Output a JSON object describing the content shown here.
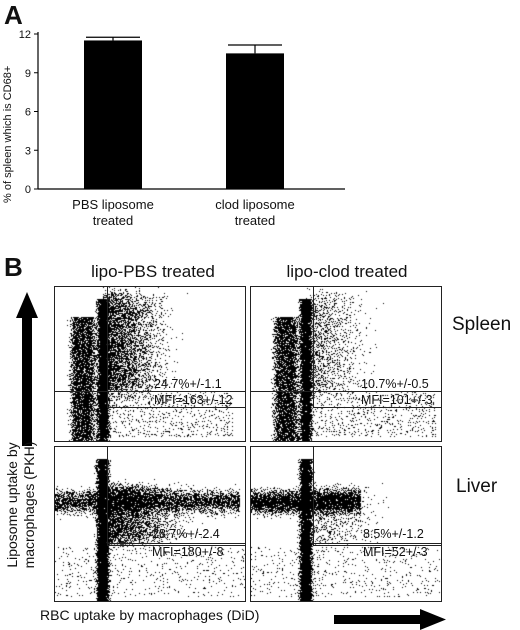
{
  "figure": {
    "panel_a_label": "A",
    "panel_b_label": "B"
  },
  "chart_data": [
    {
      "type": "bar",
      "panel": "A",
      "categories": [
        "PBS liposome\ntreated",
        "clod liposome\ntreated"
      ],
      "values": [
        11.5,
        10.5
      ],
      "errors": [
        0.25,
        0.65
      ],
      "ylabel": "% of spleen which is CD68+",
      "xlabel": "",
      "title": "",
      "ylim": [
        0,
        12
      ],
      "yticks": [
        0,
        3,
        6,
        9,
        12
      ],
      "bar_color": "#000000"
    },
    {
      "type": "scatter",
      "panel": "B",
      "columns": [
        "lipo-PBS treated",
        "lipo-clod treated"
      ],
      "rows": [
        "Spleen",
        "Liver"
      ],
      "xlabel": "RBC uptake by macrophages (DiD)",
      "ylabel": "Liposome uptake by macrophages (PKH)",
      "plots": [
        {
          "row": "Spleen",
          "column": "lipo-PBS treated",
          "percent": "24.7%+/-1.1",
          "mfi": "MFI=163+/-12"
        },
        {
          "row": "Spleen",
          "column": "lipo-clod treated",
          "percent": "10.7%+/-0.5",
          "mfi": "MFI=101+/-3"
        },
        {
          "row": "Liver",
          "column": "lipo-PBS treated",
          "percent": "28.7%+/-2.4",
          "mfi": "MFI=180+/-8"
        },
        {
          "row": "Liver",
          "column": "lipo-clod treated",
          "percent": "8.5%+/-1.2",
          "mfi": "MFI=52+/-3"
        }
      ]
    }
  ]
}
